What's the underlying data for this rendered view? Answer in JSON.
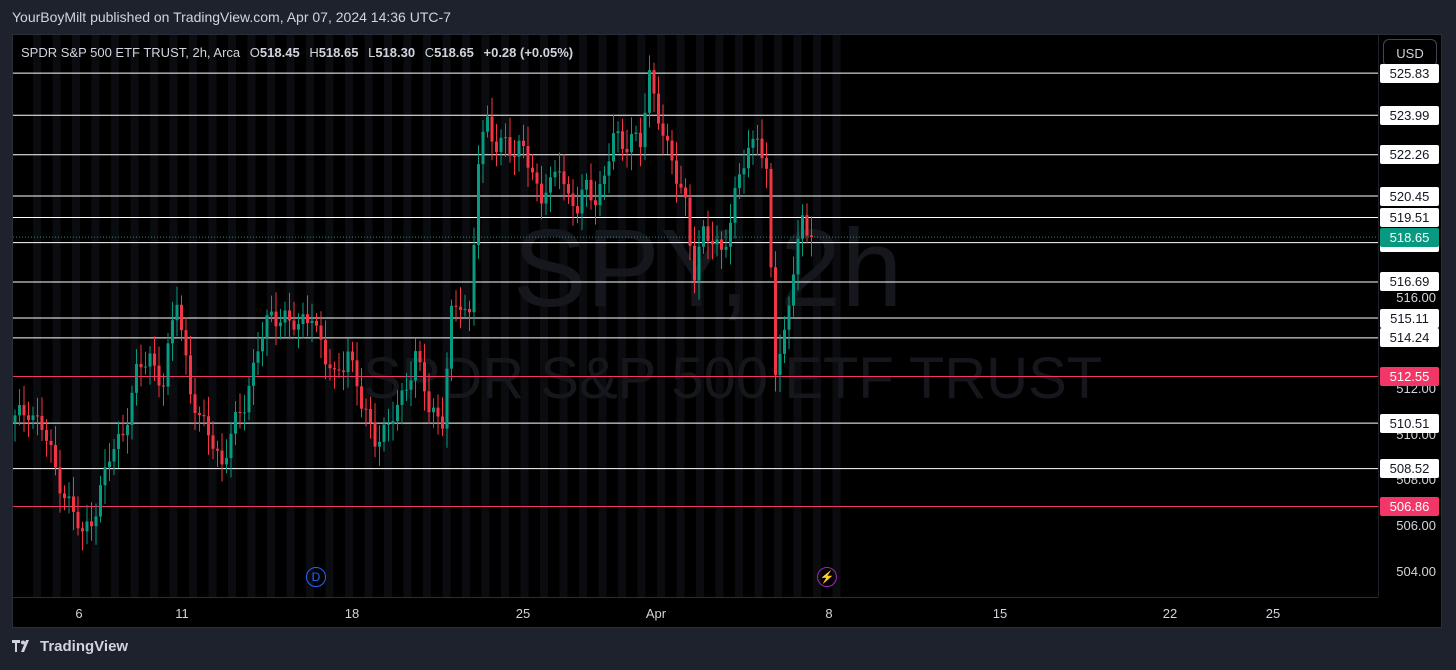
{
  "header": {
    "published_line": "YourBoyMilt published on TradingView.com, Apr 07, 2024 14:36 UTC-7"
  },
  "legend": {
    "symbol_line": "SPDR S&P 500 ETF TRUST, 2h, Arca",
    "open_label": "O",
    "open": "518.45",
    "high_label": "H",
    "high": "518.65",
    "low_label": "L",
    "low": "518.30",
    "close_label": "C",
    "close": "518.65",
    "change": "+0.28 (+0.05%)"
  },
  "currency_button": "USD",
  "watermark": {
    "symbol": "SPY, 2h",
    "description": "SPDR S&P 500 ETF TRUST"
  },
  "markers": {
    "dividend": "D",
    "earnings": "⚡"
  },
  "footer": {
    "brand": "TradingView"
  },
  "colors": {
    "up": "#089981",
    "down": "#f23645",
    "level_white": "#ffffff",
    "level_pink": "#f23668",
    "background": "#000000"
  },
  "chart_data": {
    "type": "candlestick",
    "title": "SPDR S&P 500 ETF TRUST, 2h, Arca",
    "ylim": [
      502.9,
      527.5
    ],
    "price_ticks": [
      "516.00",
      "512.00",
      "510.00",
      "508.00",
      "506.00",
      "504.00"
    ],
    "x_tick_labels": [
      "6",
      "11",
      "18",
      "25",
      "Apr",
      "8",
      "15",
      "22",
      "25"
    ],
    "horizontal_levels": [
      {
        "value": 525.83,
        "label": "525.83",
        "color": "white"
      },
      {
        "value": 523.99,
        "label": "523.99",
        "color": "white"
      },
      {
        "value": 522.26,
        "label": "522.26",
        "color": "white"
      },
      {
        "value": 520.45,
        "label": "520.45",
        "color": "white"
      },
      {
        "value": 519.51,
        "label": "519.51",
        "color": "white"
      },
      {
        "value": 518.41,
        "label": "518.41",
        "color": "white"
      },
      {
        "value": 516.69,
        "label": "516.69",
        "color": "white"
      },
      {
        "value": 515.11,
        "label": "515.11",
        "color": "white"
      },
      {
        "value": 514.24,
        "label": "514.24",
        "color": "white"
      },
      {
        "value": 512.55,
        "label": "512.55",
        "color": "pink"
      },
      {
        "value": 510.51,
        "label": "510.51",
        "color": "white"
      },
      {
        "value": 508.52,
        "label": "508.52",
        "color": "white"
      },
      {
        "value": 506.86,
        "label": "506.86",
        "color": "pink"
      }
    ],
    "last_price": {
      "value": 518.65,
      "label": "518.65"
    },
    "close_path": [
      [
        0,
        510.6
      ],
      [
        3,
        511.2
      ],
      [
        6,
        510.3
      ],
      [
        9,
        508.5
      ],
      [
        12,
        507.0
      ],
      [
        15,
        505.5
      ],
      [
        18,
        506.9
      ],
      [
        21,
        508.9
      ],
      [
        24,
        510.2
      ],
      [
        27,
        512.6
      ],
      [
        30,
        513.4
      ],
      [
        33,
        512.3
      ],
      [
        36,
        515.9
      ],
      [
        39,
        512.1
      ],
      [
        41,
        510.5
      ],
      [
        43,
        510.1
      ],
      [
        46,
        508.8
      ],
      [
        48,
        509.9
      ],
      [
        51,
        511.4
      ],
      [
        54,
        513.9
      ],
      [
        57,
        515.1
      ],
      [
        60,
        515.3
      ],
      [
        63,
        514.5
      ],
      [
        66,
        515.5
      ],
      [
        69,
        513.2
      ],
      [
        71,
        512.4
      ],
      [
        74,
        513.8
      ],
      [
        77,
        511.2
      ],
      [
        80,
        510.0
      ],
      [
        83,
        510.2
      ],
      [
        86,
        511.7
      ],
      [
        89,
        513.5
      ],
      [
        92,
        511.1
      ],
      [
        95,
        510.8
      ],
      [
        97,
        515.1
      ],
      [
        99,
        515.7
      ],
      [
        101,
        515.3
      ],
      [
        103,
        522.1
      ],
      [
        105,
        523.5
      ],
      [
        107,
        522.6
      ],
      [
        109,
        523.2
      ],
      [
        111,
        521.9
      ],
      [
        113,
        522.7
      ],
      [
        115,
        521.5
      ],
      [
        117,
        520.4
      ],
      [
        119,
        520.7
      ],
      [
        121,
        522.0
      ],
      [
        123,
        520.4
      ],
      [
        125,
        519.8
      ],
      [
        127,
        520.8
      ],
      [
        129,
        520.5
      ],
      [
        131,
        521.2
      ],
      [
        133,
        523.0
      ],
      [
        135,
        522.7
      ],
      [
        137,
        523.2
      ],
      [
        139,
        522.6
      ],
      [
        141,
        525.6
      ],
      [
        143,
        524.2
      ],
      [
        145,
        522.5
      ],
      [
        147,
        521.1
      ],
      [
        149,
        520.2
      ],
      [
        151,
        517.2
      ],
      [
        153,
        518.7
      ],
      [
        155,
        518.4
      ],
      [
        157,
        518.3
      ],
      [
        159,
        519.2
      ],
      [
        161,
        521.3
      ],
      [
        163,
        522.5
      ],
      [
        165,
        523.4
      ],
      [
        167,
        521.1
      ],
      [
        169,
        512.9
      ],
      [
        171,
        514.5
      ],
      [
        173,
        517.3
      ],
      [
        175,
        519.1
      ],
      [
        176,
        518.9
      ],
      [
        177,
        518.65
      ]
    ]
  }
}
